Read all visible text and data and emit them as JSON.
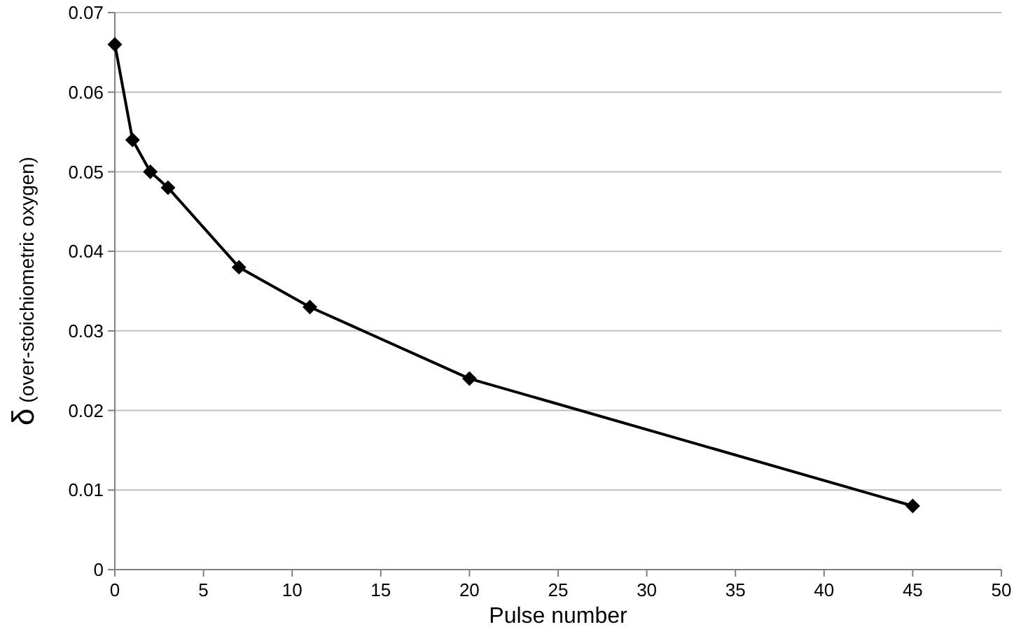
{
  "chart_data": {
    "type": "line",
    "xlabel": "Pulse number",
    "ylabel": "δ (over-stoichiometric oxygen)",
    "x": [
      0,
      1,
      2,
      3,
      7,
      11,
      20,
      45
    ],
    "series": [
      {
        "color": "#000000",
        "values": [
          0.066,
          0.054,
          0.05,
          0.048,
          0.038,
          0.033,
          0.024,
          0.008
        ]
      }
    ],
    "xlim": [
      0,
      50
    ],
    "xticks": [
      0,
      5,
      10,
      15,
      20,
      25,
      30,
      35,
      40,
      45,
      50
    ],
    "ylim": [
      0,
      0.07
    ],
    "yticks": [
      0,
      0.01,
      0.02,
      0.03,
      0.04,
      0.05,
      0.06,
      0.07
    ],
    "grid": "y",
    "marker": "diamond",
    "line_style": "solid"
  }
}
